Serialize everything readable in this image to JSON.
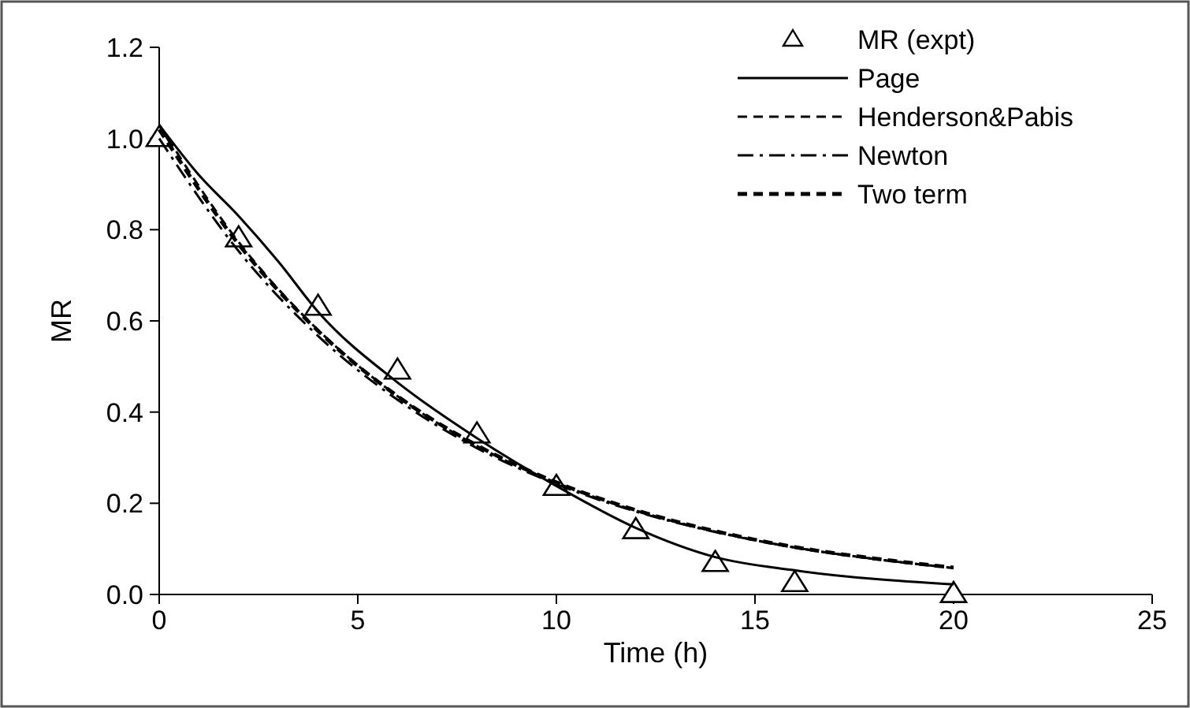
{
  "chart_data": {
    "type": "line",
    "xlabel": "Time (h)",
    "ylabel": "MR",
    "xlim": [
      0,
      25
    ],
    "xticks": [
      0,
      5,
      10,
      15,
      20,
      25
    ],
    "ylim": [
      0,
      1.2
    ],
    "yticks": [
      {
        "value": 0,
        "label": "0.0"
      },
      {
        "value": 0.2,
        "label": "0.2"
      },
      {
        "value": 0.4,
        "label": "0.4"
      },
      {
        "value": 0.6,
        "label": "0.6"
      },
      {
        "value": 0.8,
        "label": "0.8"
      },
      {
        "value": 1,
        "label": "1.0"
      },
      {
        "value": 1.2,
        "label": "1.2"
      }
    ],
    "grid": false,
    "legend": "top right",
    "series": [
      {
        "name": "MR (expt)",
        "type": "scatter",
        "marker": "triangle",
        "color": "#000000",
        "x": [
          0,
          2,
          4,
          6,
          8,
          10,
          12,
          14,
          16,
          20
        ],
        "values": [
          1.0,
          0.78,
          0.63,
          0.49,
          0.35,
          0.235,
          0.14,
          0.068,
          0.024,
          0.0
        ]
      },
      {
        "name": "Page",
        "line_style": "solid",
        "color": "#000000",
        "x": [
          0,
          1,
          2,
          3,
          4,
          6,
          8,
          10,
          12,
          14,
          16,
          20
        ],
        "values": [
          1.03,
          0.92,
          0.83,
          0.73,
          0.62,
          0.465,
          0.343,
          0.238,
          0.146,
          0.082,
          0.053,
          0.022
        ]
      },
      {
        "name": "Henderson&Pabis",
        "line_style": "dashed",
        "color": "#000000",
        "x": [
          0,
          2,
          4,
          6,
          8,
          10,
          12,
          14,
          16,
          18,
          20
        ],
        "values": [
          1.03,
          0.773,
          0.58,
          0.435,
          0.326,
          0.245,
          0.184,
          0.138,
          0.103,
          0.078,
          0.058
        ]
      },
      {
        "name": "Newton",
        "line_style": "dashdot",
        "color": "#000000",
        "x": [
          0,
          2,
          4,
          6,
          8,
          10,
          12,
          14,
          16,
          18,
          20
        ],
        "values": [
          1.0,
          0.753,
          0.567,
          0.427,
          0.321,
          0.242,
          0.182,
          0.137,
          0.103,
          0.078,
          0.058
        ]
      },
      {
        "name": "Two term",
        "line_style": "dashed",
        "color": "#000000",
        "x": [
          0,
          2,
          4,
          6,
          8,
          10,
          12,
          14,
          16,
          18,
          20
        ],
        "values": [
          1.02,
          0.768,
          0.578,
          0.435,
          0.327,
          0.246,
          0.185,
          0.139,
          0.104,
          0.079,
          0.059
        ]
      }
    ]
  }
}
